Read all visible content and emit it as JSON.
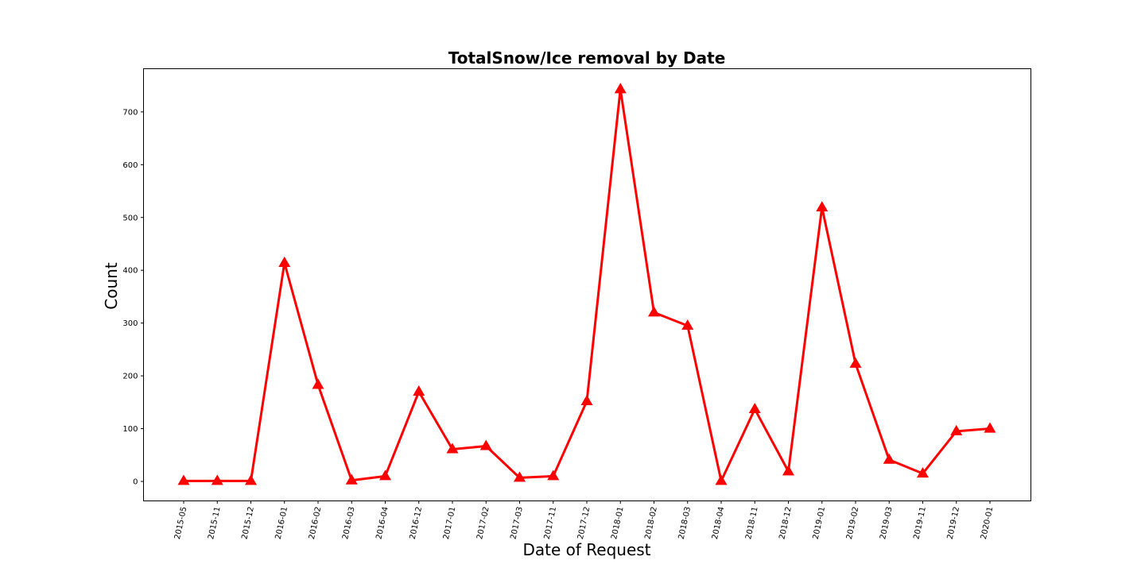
{
  "chart_data": {
    "type": "line",
    "title": "TotalSnow/Ice removal by Date",
    "xlabel": "Date of Request",
    "ylabel": "Count",
    "categories": [
      "2015-05",
      "2015-11",
      "2015-12",
      "2016-01",
      "2016-02",
      "2016-03",
      "2016-04",
      "2016-12",
      "2017-01",
      "2017-02",
      "2017-03",
      "2017-11",
      "2017-12",
      "2018-01",
      "2018-02",
      "2018-03",
      "2018-04",
      "2018-11",
      "2018-12",
      "2019-01",
      "2019-02",
      "2019-03",
      "2019-11",
      "2019-12",
      "2020-01"
    ],
    "series": [
      {
        "values": [
          1,
          1,
          1,
          414,
          183,
          2,
          10,
          170,
          61,
          67,
          7,
          10,
          152,
          743,
          320,
          295,
          1,
          137,
          19,
          519,
          223,
          41,
          15,
          95,
          100
        ],
        "color": "#ff0000",
        "marker": "triangle-up"
      }
    ],
    "ylim": [
      -36,
      780
    ],
    "yticks": [
      0,
      100,
      200,
      300,
      400,
      500,
      600,
      700
    ],
    "grid": false,
    "legend": "none"
  }
}
